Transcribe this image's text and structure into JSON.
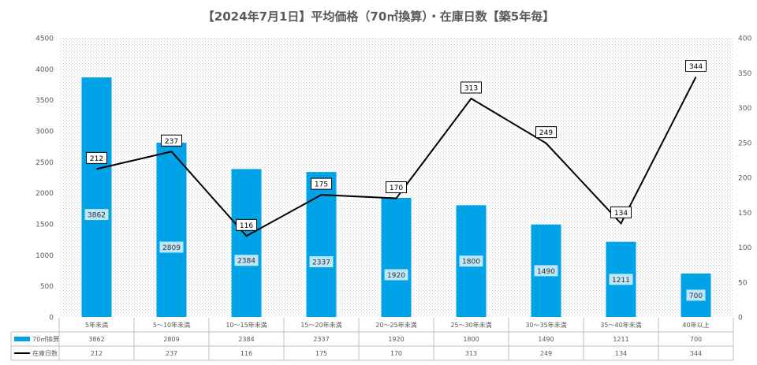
{
  "chart_data": {
    "title": "【2024年7月1日】平均価格（70㎡換算）・在庫日数【築5年毎】",
    "type": "bar+line",
    "categories": [
      "5年未満",
      "5～10年未満",
      "10～15年未満",
      "15～20年未満",
      "20～25年未満",
      "25～30年未満",
      "30～35年未満",
      "35～40年未満",
      "40年以上"
    ],
    "series": [
      {
        "name": "70㎡換算",
        "type": "bar",
        "axis": "left",
        "color": "#00A2E8",
        "values": [
          3862,
          2809,
          2384,
          2337,
          1920,
          1800,
          1490,
          1211,
          700
        ]
      },
      {
        "name": "在庫日数",
        "type": "line",
        "axis": "right",
        "color": "#000000",
        "values": [
          212,
          237,
          116,
          175,
          170,
          313,
          249,
          134,
          344
        ]
      }
    ],
    "y_left": {
      "min": 0,
      "max": 4500,
      "step": 500,
      "ticks": [
        "0",
        "500",
        "1000",
        "1500",
        "2000",
        "2500",
        "3000",
        "3500",
        "4000",
        "4500"
      ]
    },
    "y_right": {
      "min": 0,
      "max": 400,
      "step": 50,
      "ticks": [
        "0",
        "50",
        "100",
        "150",
        "200",
        "250",
        "300",
        "350",
        "400"
      ]
    },
    "table": {
      "rows": [
        {
          "label": "70㎡換算",
          "values": [
            "3862",
            "2809",
            "2384",
            "2337",
            "1920",
            "1800",
            "1490",
            "1211",
            "700"
          ]
        },
        {
          "label": "在庫日数",
          "values": [
            "212",
            "237",
            "116",
            "175",
            "170",
            "313",
            "249",
            "134",
            "344"
          ]
        }
      ]
    },
    "grid": false,
    "plot_background": "dotted-gray"
  }
}
